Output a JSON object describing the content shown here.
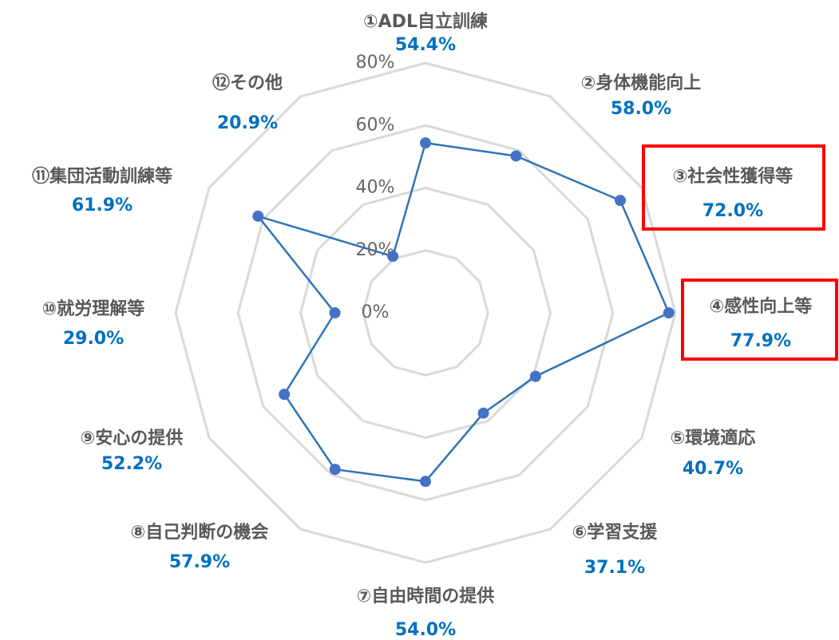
{
  "chart_data": {
    "type": "radar",
    "categories": [
      "①ADL自立訓練",
      "②身体機能向上",
      "③社会性獲得等",
      "④感性向上等",
      "⑤環境適応",
      "⑥学習支援",
      "⑦自由時間の提供",
      "⑧自己判断の機会",
      "⑨安心の提供",
      "⑩就労理解等",
      "⑪集団活動訓練等",
      "⑫その他"
    ],
    "values": [
      54.4,
      58.0,
      72.0,
      77.9,
      40.7,
      37.1,
      54.0,
      57.9,
      52.2,
      29.0,
      61.9,
      20.9
    ],
    "value_labels": [
      "54.4%",
      "58.0%",
      "72.0%",
      "77.9%",
      "40.7%",
      "37.1%",
      "54.0%",
      "57.9%",
      "52.2%",
      "29.0%",
      "61.9%",
      "20.9%"
    ],
    "color": "#2e75b6",
    "marker_color": "#4472c4",
    "ylim": [
      0,
      80
    ],
    "yticks": [
      {
        "value": 0,
        "label": "0%"
      },
      {
        "value": 20,
        "label": "20%"
      },
      {
        "value": 40,
        "label": "40%"
      },
      {
        "value": 60,
        "label": "60%"
      },
      {
        "value": 80,
        "label": "80%"
      }
    ],
    "grid": true
  }
}
